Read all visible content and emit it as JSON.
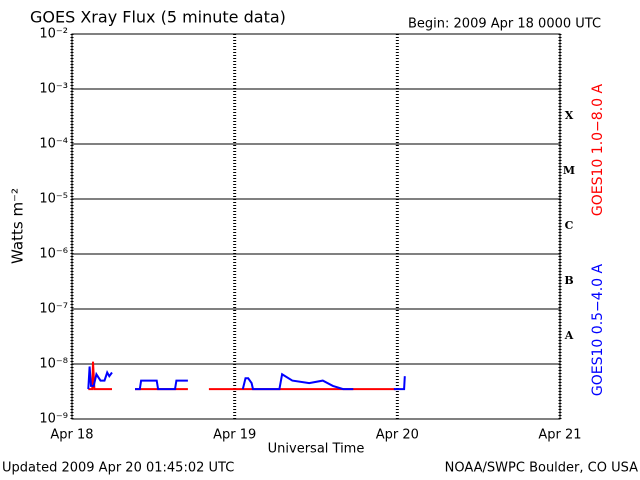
{
  "chart_data": {
    "type": "line",
    "title": "GOES Xray Flux (5 minute data)",
    "subtitle": "Begin:  2009 Apr 18 0000 UTC",
    "y_label": "Watts m⁻²",
    "x_label": "Universal Time",
    "footer_left": "Updated 2009 Apr 20 01:45:02 UTC",
    "footer_right": "NOAA/SWPC Boulder, CO USA",
    "class_labels": [
      "X",
      "M",
      "C",
      "B",
      "A"
    ],
    "log_y": true,
    "grid": true,
    "xlim": [
      0,
      72
    ],
    "xticks": [
      {
        "value": 0,
        "label": "Apr 18"
      },
      {
        "value": 24,
        "label": "Apr 19"
      },
      {
        "value": 48,
        "label": "Apr 20"
      },
      {
        "value": 72,
        "label": "Apr 21"
      }
    ],
    "ylim": [
      1e-09,
      0.01
    ],
    "yticks": [
      {
        "value": 1e-09,
        "label": "10⁻⁹"
      },
      {
        "value": 1e-08,
        "label": "10⁻⁸"
      },
      {
        "value": 1e-07,
        "label": "10⁻⁷"
      },
      {
        "value": 1e-06,
        "label": "10⁻⁶"
      },
      {
        "value": 1e-05,
        "label": "10⁻⁵"
      },
      {
        "value": 0.0001,
        "label": "10⁻⁴"
      },
      {
        "value": 0.001,
        "label": "10⁻³"
      },
      {
        "value": 0.01,
        "label": "10⁻²"
      }
    ],
    "series": [
      {
        "name": "GOES10 1.0−8.0 A",
        "color": "#ff0000",
        "x": [
          2.4,
          3.0,
          3.1,
          3.3,
          5.9,
          7.6,
          9.3,
          17.1,
          18.6,
          20.2,
          47.7
        ],
        "values": [
          3.5e-09,
          3.5e-09,
          1.1e-08,
          3.5e-09,
          3.5e-09,
          null,
          3.5e-09,
          3.5e-09,
          null,
          3.5e-09,
          3.5e-09
        ]
      },
      {
        "name": "GOES10 0.5−4.0 A",
        "color": "#0000ff",
        "x": [
          2.4,
          2.6,
          2.8,
          3.2,
          3.6,
          4.2,
          4.8,
          5.2,
          5.5,
          5.9,
          7.6,
          9.3,
          10.0,
          10.2,
          12.5,
          12.7,
          15.2,
          15.4,
          17.1,
          18.6,
          25.2,
          25.6,
          26.0,
          26.5,
          26.7,
          28.0,
          30.6,
          31.0,
          32.5,
          35.0,
          37.0,
          38.5,
          40.0,
          41.5,
          42.0,
          47.5,
          49.0,
          49.1
        ],
        "values": [
          3.5e-09,
          9e-09,
          4e-09,
          4e-09,
          6.5e-09,
          5e-09,
          5e-09,
          7e-09,
          6e-09,
          7e-09,
          null,
          3.5e-09,
          3.5e-09,
          5e-09,
          5e-09,
          3.5e-09,
          3.5e-09,
          5e-09,
          5e-09,
          null,
          3.5e-09,
          5.5e-09,
          5.5e-09,
          4.5e-09,
          3.5e-09,
          3.5e-09,
          3.5e-09,
          6.5e-09,
          5e-09,
          4.5e-09,
          5e-09,
          4e-09,
          3.5e-09,
          3.5e-09,
          null,
          3.5e-09,
          3.5e-09,
          6e-09
        ]
      }
    ]
  }
}
